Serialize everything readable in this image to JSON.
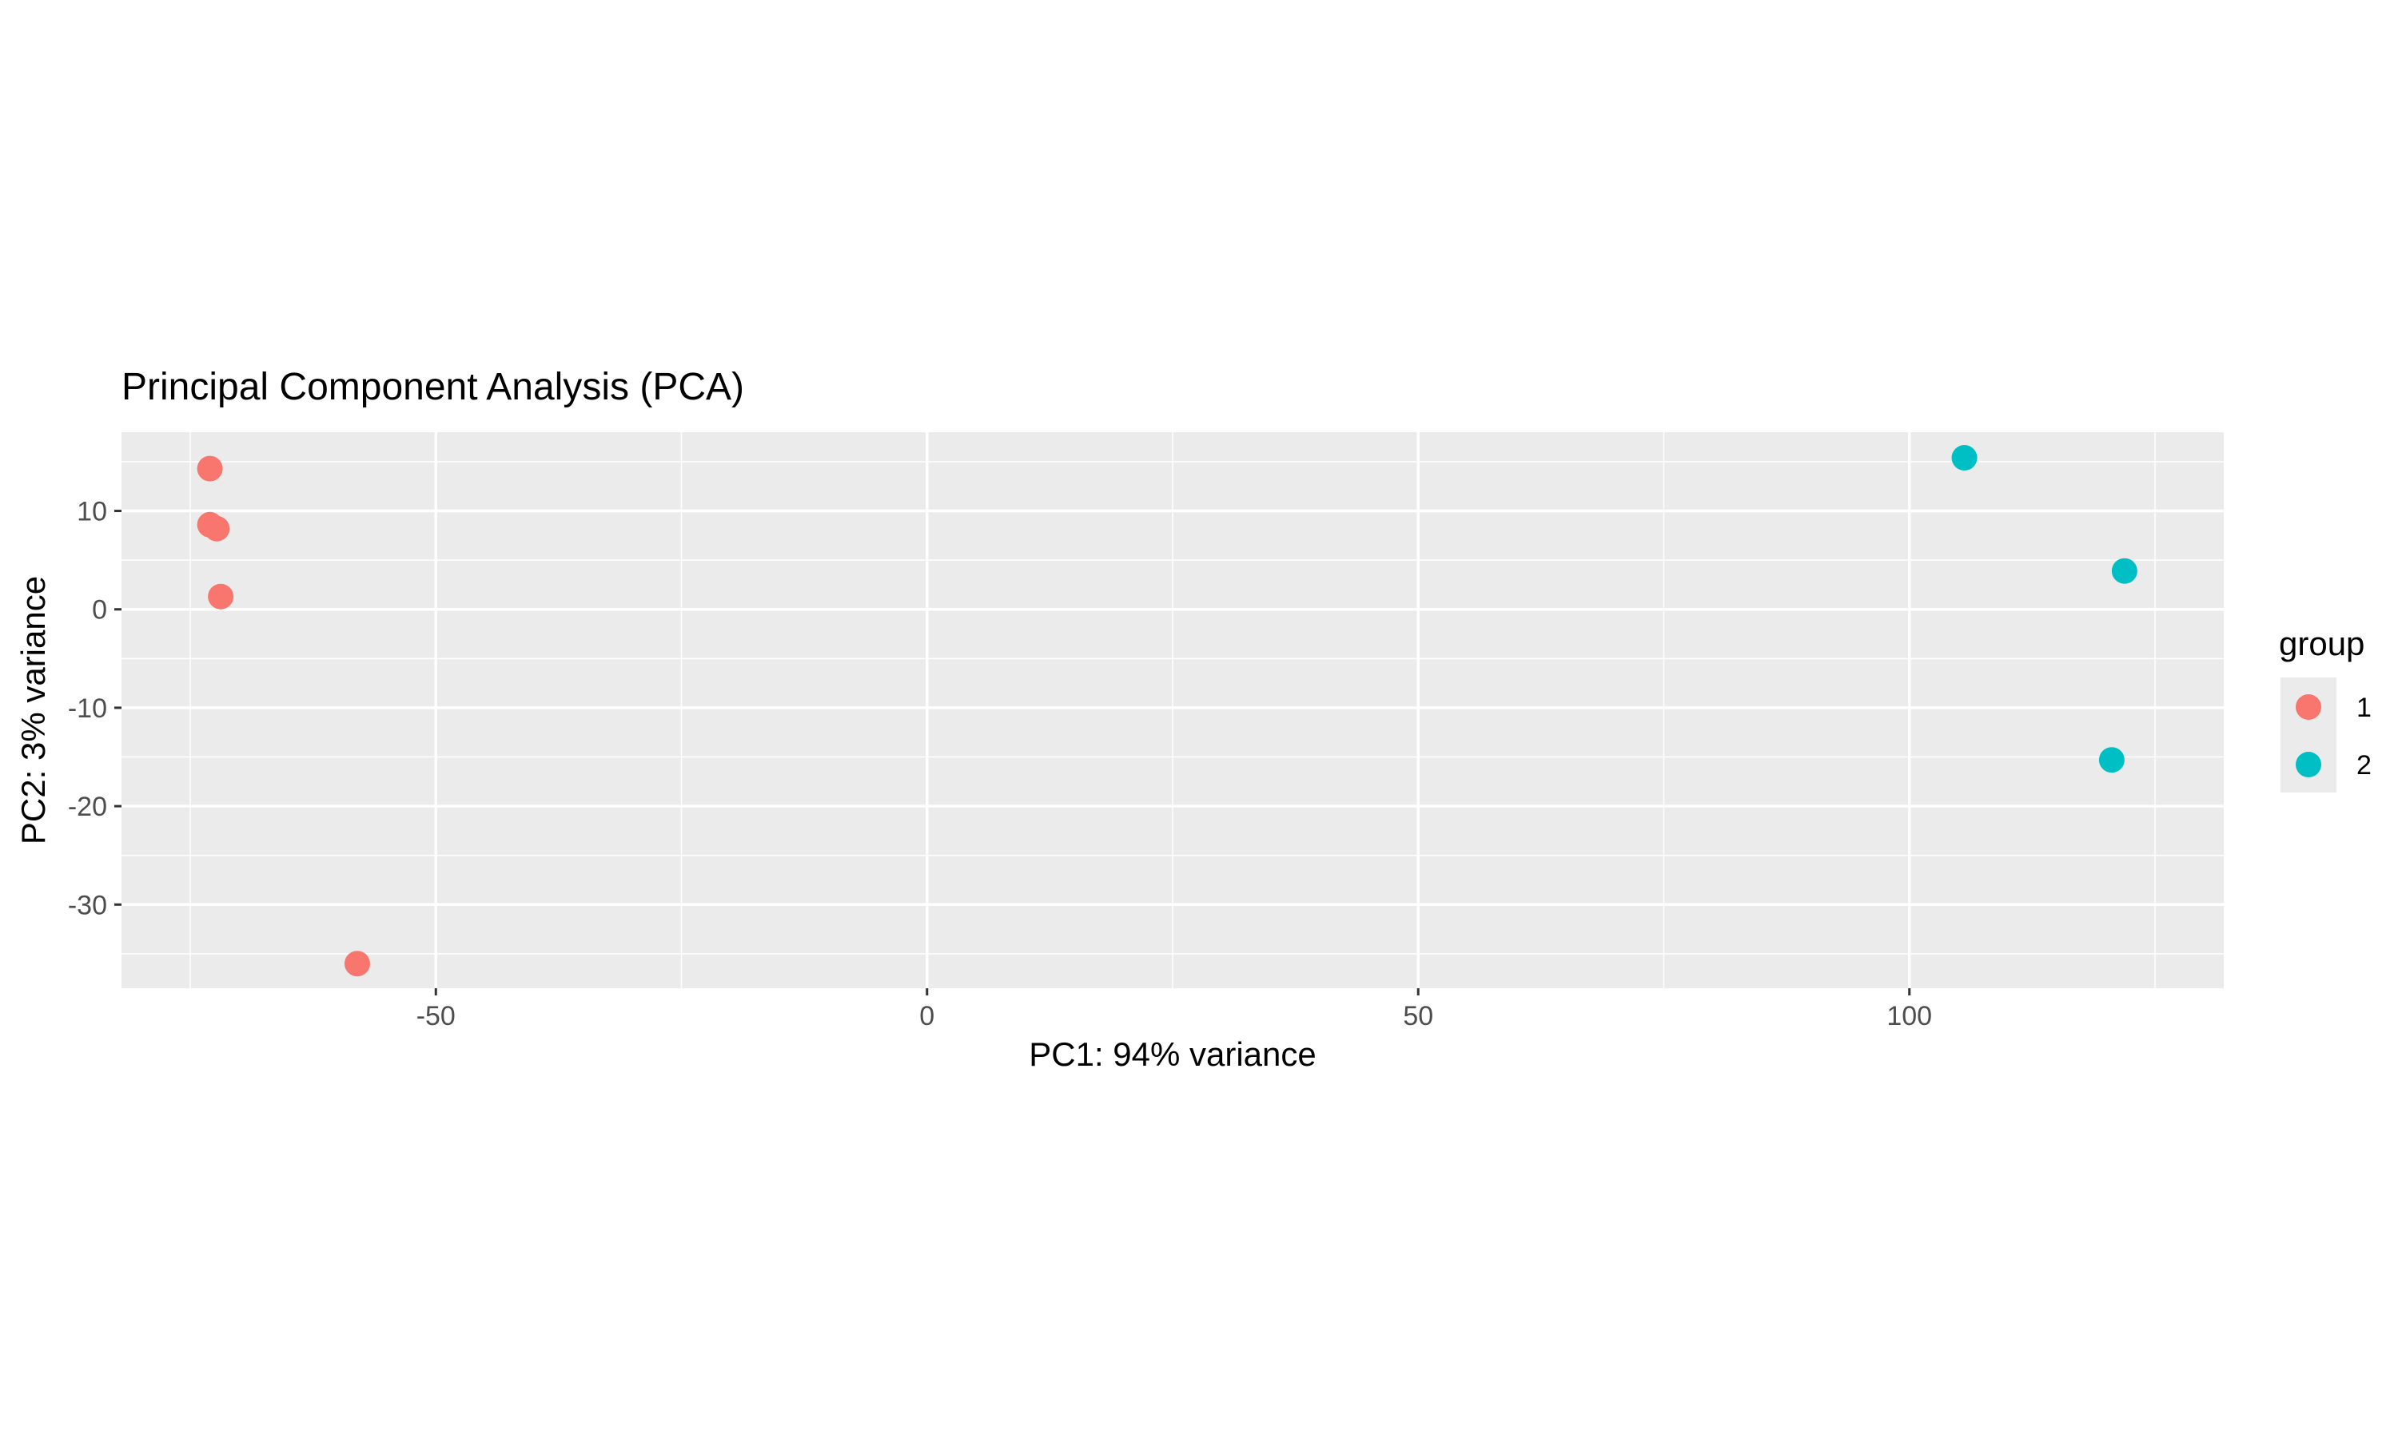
{
  "chart_data": {
    "type": "scatter",
    "title": "Principal Component Analysis (PCA)",
    "xlabel": "PC1: 94% variance",
    "ylabel": "PC2: 3% variance",
    "xlim": [
      -82,
      132
    ],
    "ylim": [
      -38.5,
      18.0
    ],
    "x_major_ticks": [
      -50,
      0,
      50,
      100
    ],
    "x_tick_labels": [
      "-50",
      "0",
      "50",
      "100"
    ],
    "x_minor_ticks": [
      -75,
      -25,
      25,
      75,
      125
    ],
    "y_major_ticks": [
      10,
      0,
      -10,
      -20,
      -30
    ],
    "y_tick_labels": [
      "10",
      "0",
      "-10",
      "-20",
      "-30"
    ],
    "y_minor_ticks": [
      15,
      5,
      -5,
      -15,
      -25,
      -35
    ],
    "grid": true,
    "legend": {
      "title": "group",
      "position": "right",
      "entries": [
        {
          "label": "1",
          "color": "#F8766D"
        },
        {
          "label": "2",
          "color": "#00BFC4"
        }
      ]
    },
    "series": [
      {
        "name": "1",
        "color": "#F8766D",
        "points": [
          {
            "x": -73.0,
            "y": 14.3
          },
          {
            "x": -73.0,
            "y": 8.6
          },
          {
            "x": -72.3,
            "y": 8.2
          },
          {
            "x": -71.9,
            "y": 1.3
          },
          {
            "x": -58.0,
            "y": -36.0
          }
        ]
      },
      {
        "name": "2",
        "color": "#00BFC4",
        "points": [
          {
            "x": 105.6,
            "y": 15.4
          },
          {
            "x": 121.9,
            "y": 3.9
          },
          {
            "x": 120.6,
            "y": -15.3
          }
        ]
      }
    ]
  },
  "colors": {
    "panel_background": "#EBEBEB",
    "grid_line": "#FFFFFF",
    "tick_text": "#4D4D4D",
    "tick_mark": "#333333"
  }
}
